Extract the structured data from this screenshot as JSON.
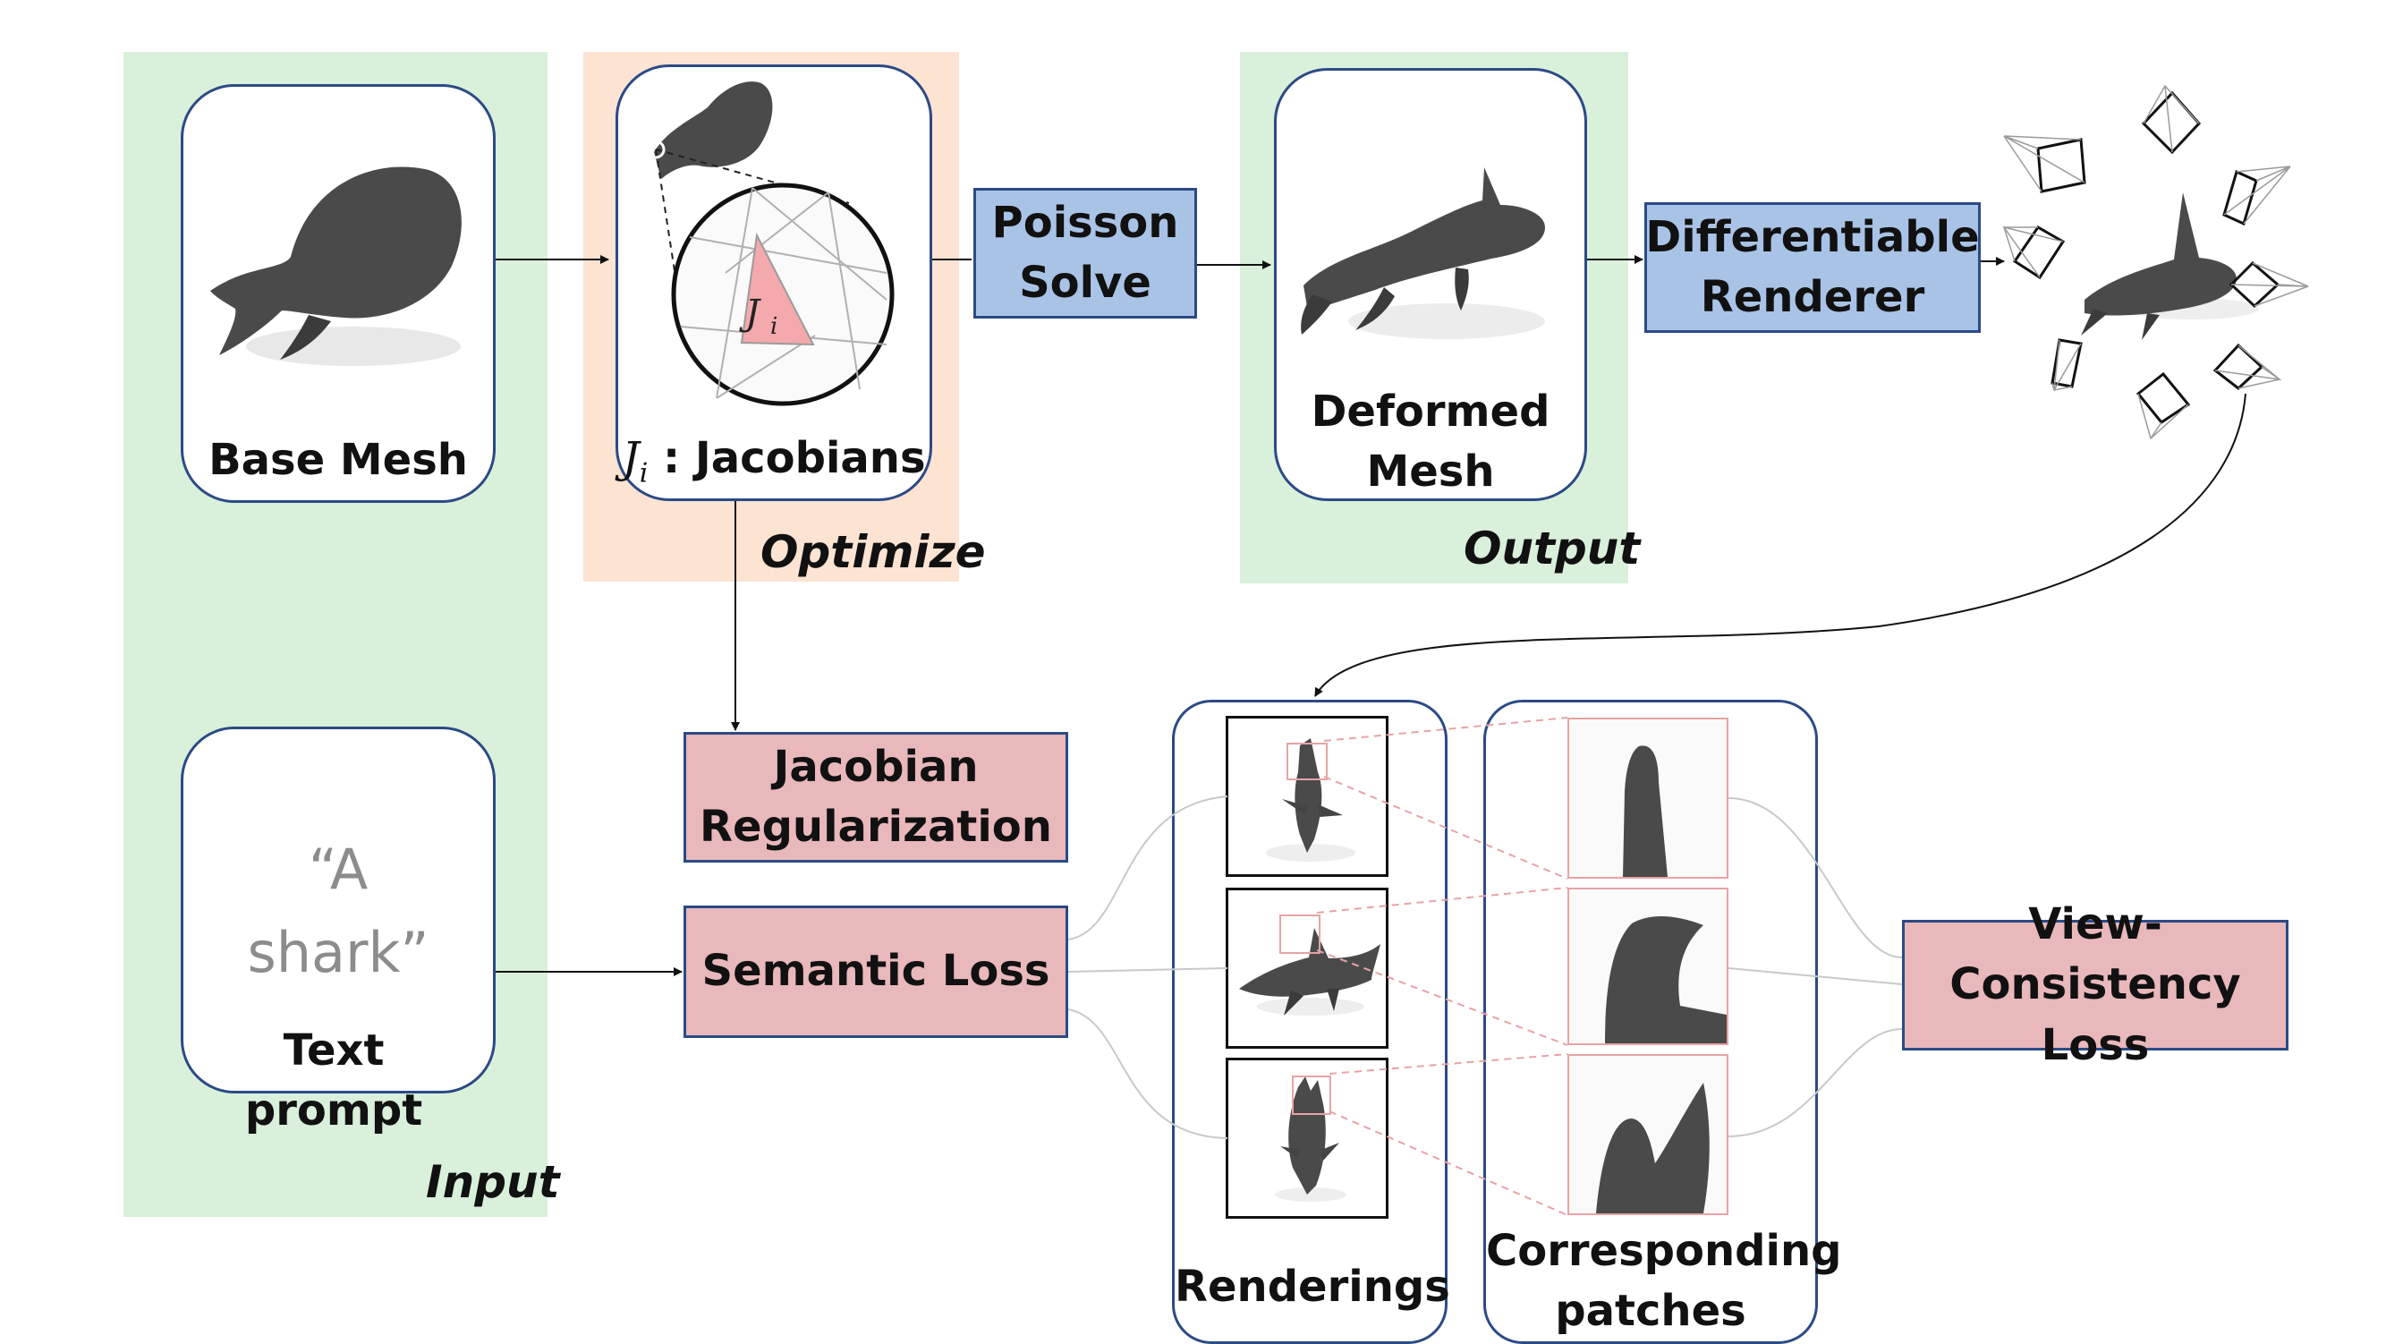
{
  "regions": {
    "input": "Input",
    "optimize": "Optimize",
    "output": "Output"
  },
  "cards": {
    "base_mesh": "Base Mesh",
    "jacobians_symbol": "J",
    "jacobians_subscript": "i",
    "jacobians_label": " : Jacobians",
    "inset_symbol": "J",
    "inset_subscript": "i",
    "deformed_mesh": "Deformed\nMesh",
    "text_prompt_quote": "“A\nshark”",
    "text_prompt": "Text prompt",
    "renderings": "Renderings",
    "corresponding_patches": "Corresponding\npatches"
  },
  "boxes": {
    "poisson_solve": "Poisson\nSolve",
    "differentiable_renderer": "Differentiable\nRenderer",
    "jacobian_regularization": "Jacobian\nRegularization",
    "semantic_loss": "Semantic Loss",
    "view_consistency_loss": "View-\nConsistency Loss"
  },
  "colors": {
    "region_green": "#d9f0da",
    "region_peach": "#fde3d2",
    "box_blue": "#a9c3e6",
    "box_pink": "#e9b8bb",
    "card_border": "#2b4a86",
    "mesh_gray": "#4a4a4a",
    "triangle_pink": "#f4a9ad"
  }
}
